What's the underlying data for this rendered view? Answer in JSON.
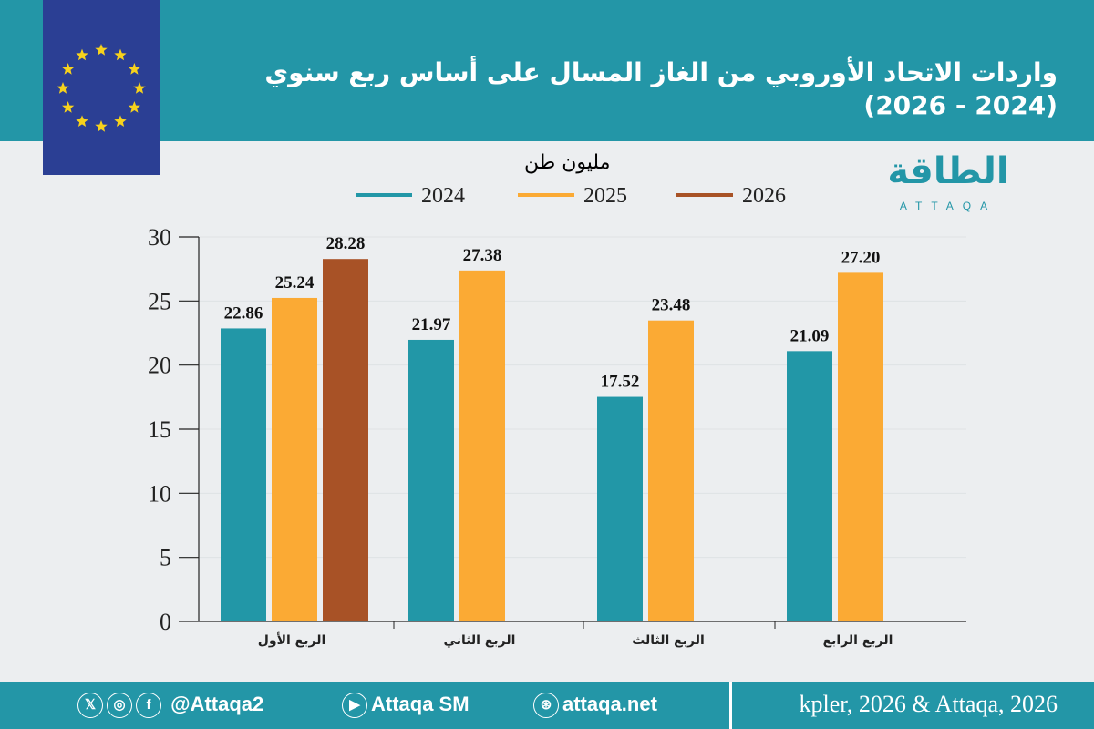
{
  "header": {
    "title": "واردات الاتحاد الأوروبي من الغاز المسال على أساس ربع سنوي (2024 - 2026)"
  },
  "logo": {
    "text": "الطاقة",
    "sub": "ATTAQA"
  },
  "footer": {
    "x_handle": "@Attaqa2",
    "youtube": "Attaqa SM",
    "website": "attaqa.net",
    "source": "kpler, 2026 & Attaqa, 2026",
    "icons": [
      "x-icon",
      "instagram-icon",
      "facebook-icon",
      "youtube-icon",
      "globe-icon"
    ]
  },
  "chart_data": {
    "type": "bar",
    "ylabel": "مليون طن",
    "categories": [
      "الربع الأول",
      "الربع الثاني",
      "الربع الثالث",
      "الربع الرابع"
    ],
    "series": [
      {
        "name": "2024",
        "color": "#2297a7",
        "values": [
          22.86,
          21.97,
          17.52,
          21.09
        ]
      },
      {
        "name": "2025",
        "color": "#fbaa34",
        "values": [
          25.24,
          27.38,
          23.48,
          27.2
        ]
      },
      {
        "name": "2026",
        "color": "#a85226",
        "values": [
          28.28,
          null,
          null,
          null
        ]
      }
    ],
    "ylim": [
      0,
      30
    ],
    "yticks": [
      0,
      5,
      10,
      15,
      20,
      25,
      30
    ],
    "grid": true,
    "legend": "top"
  }
}
